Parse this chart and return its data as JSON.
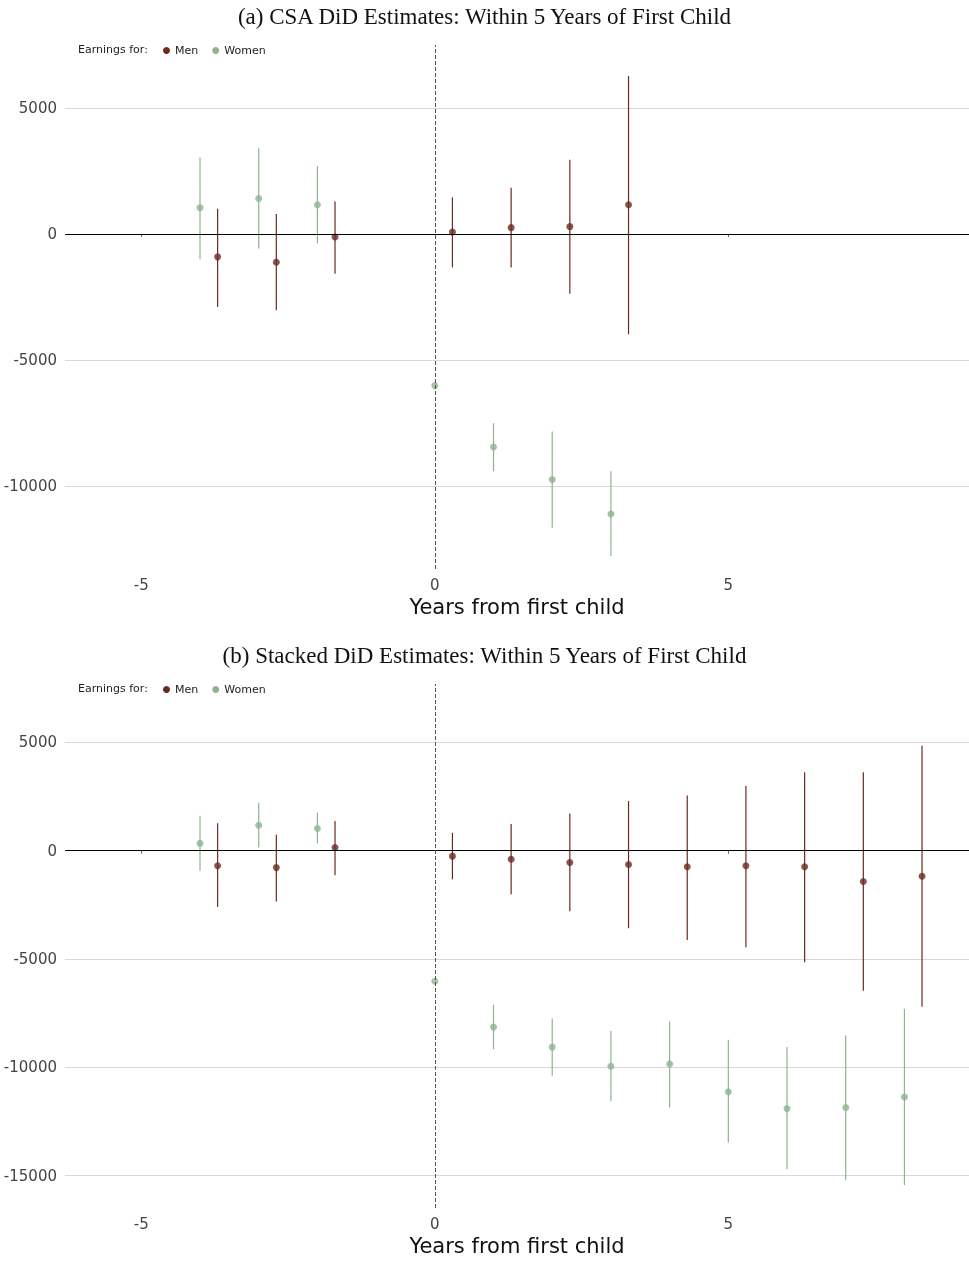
{
  "chart_data": [
    {
      "type": "scatter",
      "title": "(a) CSA DiD Estimates: Within 5 Years of First Child",
      "xlabel": "Years from first child",
      "legend_title": "Earnings for:",
      "legend": "top left",
      "marker": "circle",
      "grid": "y",
      "xlim": [
        -6.3,
        9.1
      ],
      "xticks": [
        -5,
        0,
        5
      ],
      "ylim": [
        -13300,
        7500
      ],
      "yticks": [
        -10000,
        -5000,
        0,
        5000
      ],
      "ref_lines": [
        {
          "axis": "y",
          "value": 0,
          "color": "#000000",
          "line_style": "solid"
        },
        {
          "axis": "x",
          "value": 0,
          "color": "#555555",
          "line_style": "dashed"
        }
      ],
      "series": [
        {
          "name": "Men",
          "color": "#6b2a1f",
          "x": [
            -3.7,
            -2.7,
            -1.7,
            0.3,
            1.3,
            2.3,
            3.3
          ],
          "values": [
            -910,
            -1120,
            -120,
            80,
            250,
            290,
            1160
          ],
          "errors": [
            [
              -2900,
              1000
            ],
            [
              -3030,
              790
            ],
            [
              -1580,
              1290
            ],
            [
              -1330,
              1450
            ],
            [
              -1330,
              1830
            ],
            [
              -2370,
              2950
            ],
            [
              -3980,
              6270
            ]
          ]
        },
        {
          "name": "Women",
          "color": "#8fb38f",
          "x": [
            -4,
            -3,
            -2,
            0,
            1,
            2,
            3
          ],
          "values": [
            1040,
            1410,
            1160,
            -6020,
            -8460,
            -9750,
            -11120
          ],
          "errors": [
            [
              -1000,
              3030
            ],
            [
              -580,
              3400
            ],
            [
              -370,
              2700
            ],
            null,
            [
              -9420,
              -7510
            ],
            [
              -11660,
              -7840
            ],
            [
              -12780,
              -9420
            ]
          ]
        }
      ]
    },
    {
      "type": "scatter",
      "title": "(b) Stacked DiD Estimates: Within 5 Years of First Child",
      "xlabel": "Years from first child",
      "legend_title": "Earnings for:",
      "legend": "top left",
      "marker": "circle",
      "grid": "y",
      "xlim": [
        -6.3,
        9.1
      ],
      "xticks": [
        -5,
        0,
        5
      ],
      "ylim": [
        -16500,
        7700
      ],
      "yticks": [
        -15000,
        -10000,
        -5000,
        0,
        5000
      ],
      "ref_lines": [
        {
          "axis": "y",
          "value": 0,
          "color": "#000000",
          "line_style": "solid"
        },
        {
          "axis": "x",
          "value": 0,
          "color": "#555555",
          "line_style": "dashed"
        }
      ],
      "series": [
        {
          "name": "Men",
          "color": "#6b2a1f",
          "x": [
            -3.7,
            -2.7,
            -1.7,
            0.3,
            1.3,
            2.3,
            3.3,
            4.3,
            5.3,
            6.3,
            7.3,
            8.3
          ],
          "values": [
            -690,
            -780,
            150,
            -250,
            -390,
            -540,
            -640,
            -740,
            -690,
            -740,
            -1420,
            -1180
          ],
          "errors": [
            [
              -2600,
              1270
            ],
            [
              -2350,
              740
            ],
            [
              -1130,
              1370
            ],
            [
              -1320,
              830
            ],
            [
              -2010,
              1230
            ],
            [
              -2790,
              1720
            ],
            [
              -3580,
              2300
            ],
            [
              -4120,
              2550
            ],
            [
              -4460,
              2990
            ],
            [
              -5150,
              3630
            ],
            [
              -6470,
              3630
            ],
            [
              -7210,
              4850
            ]
          ]
        },
        {
          "name": "Women",
          "color": "#8fb38f",
          "x": [
            -4,
            -3,
            -2,
            0,
            1,
            2,
            3,
            4,
            5,
            6,
            7,
            8
          ],
          "values": [
            340,
            1180,
            1030,
            -6030,
            -8140,
            -9070,
            -9950,
            -9850,
            -11130,
            -11910,
            -11860,
            -11370
          ],
          "errors": [
            [
              -930,
              1620
            ],
            [
              150,
              2210
            ],
            [
              340,
              1760
            ],
            null,
            [
              -9170,
              -7110
            ],
            [
              -10390,
              -7750
            ],
            [
              -11570,
              -8330
            ],
            [
              -11860,
              -7890
            ],
            [
              -13480,
              -8730
            ],
            [
              -14710,
              -9070
            ],
            [
              -15200,
              -8530
            ],
            [
              -15440,
              -7300
            ]
          ]
        }
      ]
    }
  ]
}
